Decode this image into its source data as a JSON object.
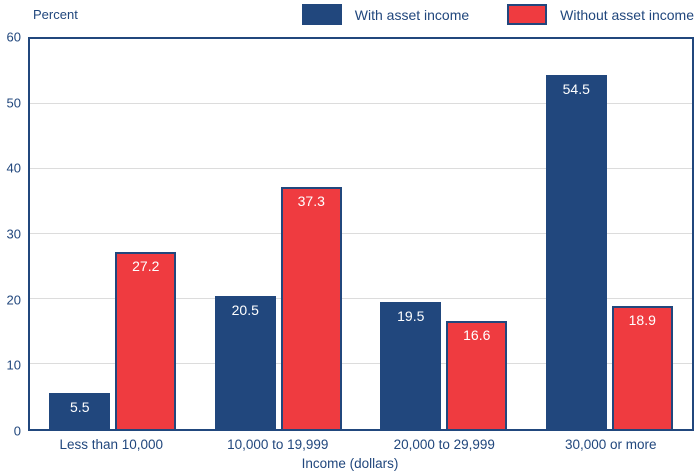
{
  "chart": {
    "y_axis_title": "Percent",
    "x_axis_title": "Income (dollars)"
  },
  "colors": {
    "axis": "#21477D",
    "grid": "#DCDCDC",
    "with_asset_income": "#21477D",
    "without_asset_income": "#EF3B40",
    "bar_value_text": "#FFFFFF"
  },
  "chart_data": {
    "type": "bar",
    "title": "",
    "categories": [
      "Less than 10,000",
      "10,000 to 19,999",
      "20,000 to 29,999",
      "30,000 or more"
    ],
    "series": [
      {
        "name": "With asset income",
        "color": "#21477D",
        "values": [
          5.5,
          20.5,
          19.5,
          54.5
        ]
      },
      {
        "name": "Without asset income",
        "color": "#EF3B40",
        "values": [
          27.2,
          37.3,
          16.6,
          18.9
        ]
      }
    ],
    "xlabel": "Income (dollars)",
    "ylabel": "Percent",
    "ylim": [
      0,
      60
    ],
    "yticks": [
      0,
      10,
      20,
      30,
      40,
      50,
      60
    ],
    "grid": true,
    "legend_position": "top-right",
    "value_labels_shown": true
  }
}
